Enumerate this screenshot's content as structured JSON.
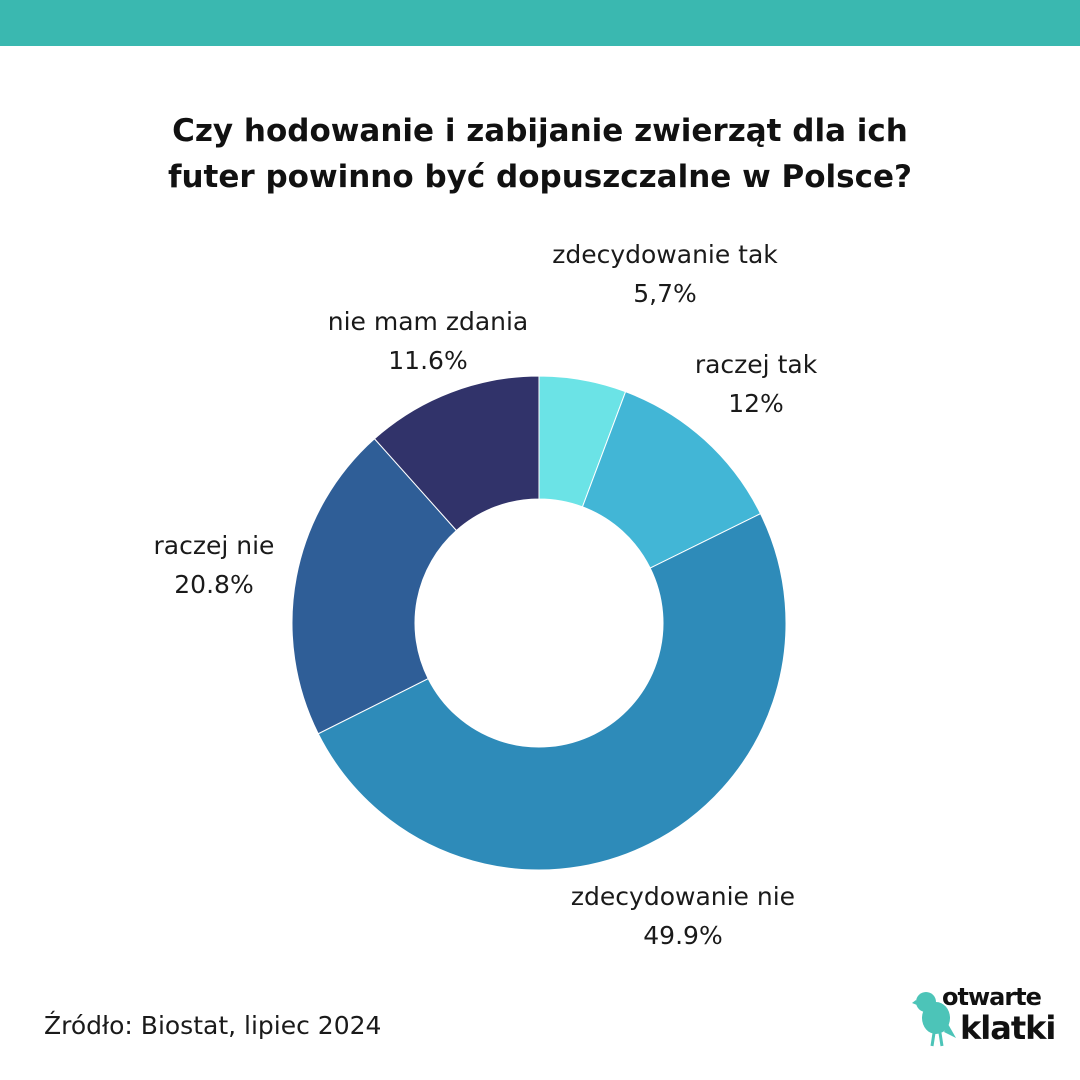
{
  "colors": {
    "top_bar": "#3ab8b0",
    "logo_accent": "#4cc4b8",
    "slices": {
      "zdecydowanie_tak": "#6be3e6",
      "raczej_tak": "#42b6d6",
      "zdecydowanie_nie": "#2e8bb9",
      "raczej_nie": "#2f5e97",
      "nie_mam_zdania": "#31336a"
    }
  },
  "title_lines": [
    "Czy hodowanie i zabijanie zwierząt dla ich",
    "futer powinno być dopuszczalne w Polsce?"
  ],
  "chart_data": {
    "type": "pie",
    "variant": "donut",
    "title": "Czy hodowanie i zabijanie zwierząt dla ich futer powinno być dopuszczalne w Polsce?",
    "start": "12 o'clock",
    "direction": "clockwise",
    "slices": [
      {
        "label": "zdecydowanie tak",
        "value": 5.7,
        "value_label": "5,7%"
      },
      {
        "label": "raczej tak",
        "value": 12,
        "value_label": "12%"
      },
      {
        "label": "zdecydowanie nie",
        "value": 49.9,
        "value_label": "49.9%"
      },
      {
        "label": "raczej nie",
        "value": 20.8,
        "value_label": "20.8%"
      },
      {
        "label": "nie mam zdania",
        "value": 11.6,
        "value_label": "11.6%"
      }
    ]
  },
  "source": "Źródło: Biostat, lipiec 2024",
  "logo": {
    "line1": "otwarte",
    "line2": "klatki"
  }
}
